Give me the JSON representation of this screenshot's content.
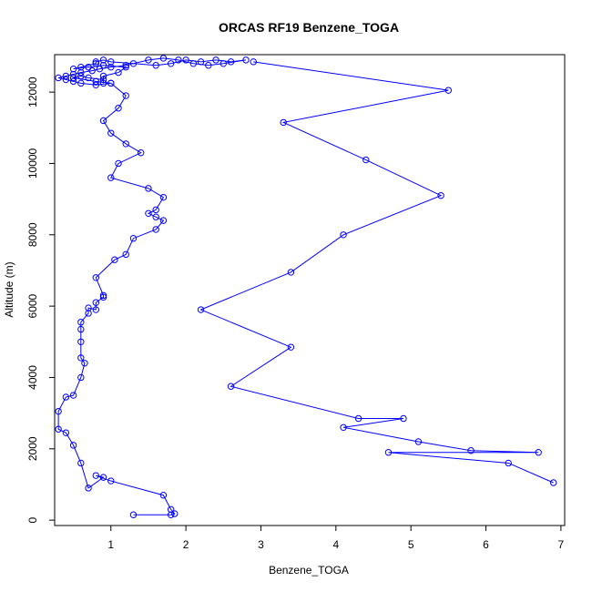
{
  "chart_data": {
    "type": "line",
    "title": "ORCAS RF19 Benzene_TOGA",
    "xlabel": "Benzene_TOGA",
    "ylabel": "Altitude (m)",
    "xlim": [
      0.25,
      7.05
    ],
    "ylim": [
      -150,
      13050
    ],
    "x_ticks": [
      1,
      2,
      3,
      4,
      5,
      6,
      7
    ],
    "y_ticks": [
      0,
      2000,
      4000,
      6000,
      8000,
      10000,
      12000
    ],
    "x_tick_labels": [
      "1",
      "2",
      "3",
      "4",
      "5",
      "6",
      "7"
    ],
    "y_tick_labels": [
      "0",
      "2000",
      "4000",
      "6000",
      "8000",
      "10000",
      "12000"
    ],
    "grid": false,
    "line_color": "#0000ff",
    "series": [
      {
        "x": [
          1.3,
          1.8,
          1.85,
          1.8,
          1.7,
          1.0,
          0.8,
          0.9,
          0.7,
          0.6,
          0.5,
          0.4,
          0.3,
          0.3,
          0.4,
          0.5,
          0.6,
          0.65,
          0.6,
          0.6,
          0.6,
          0.6,
          0.7,
          0.7,
          0.8,
          0.8,
          0.9,
          0.9,
          0.8,
          1.05,
          1.2,
          1.3,
          1.6,
          1.7,
          1.6,
          1.5,
          1.6,
          1.7,
          1.5,
          1.0,
          1.1,
          1.4,
          1.2,
          1.0,
          0.9,
          1.1,
          1.2,
          1.0,
          0.8,
          0.5,
          0.6,
          0.7,
          0.9,
          0.9,
          0.9,
          1.1,
          1.2,
          0.9,
          0.7,
          0.5,
          0.6,
          0.8,
          0.8,
          0.9,
          1.0,
          1.3,
          1.6,
          1.8,
          2.0,
          2.2,
          2.4,
          2.6,
          2.8,
          2.5,
          2.3,
          2.1,
          1.9,
          1.7,
          1.5,
          1.2,
          1.0,
          0.85,
          0.75,
          0.6,
          0.5,
          0.4,
          0.3,
          0.4,
          0.5,
          0.6,
          0.8,
          1.0
        ],
        "y": [
          150,
          150,
          180,
          300,
          700,
          1100,
          1250,
          1200,
          900,
          1600,
          2100,
          2450,
          2550,
          3050,
          3450,
          3500,
          4000,
          4400,
          4550,
          5000,
          5350,
          5550,
          5800,
          5950,
          5900,
          6100,
          6250,
          6300,
          6800,
          7300,
          7450,
          7900,
          8150,
          8400,
          8500,
          8600,
          8700,
          9050,
          9300,
          9600,
          10000,
          10300,
          10550,
          10850,
          11200,
          11550,
          11900,
          12250,
          12300,
          12400,
          12450,
          12400,
          12350,
          12250,
          12450,
          12550,
          12700,
          12750,
          12700,
          12650,
          12700,
          12800,
          12850,
          12900,
          12850,
          12800,
          12750,
          12800,
          12900,
          12850,
          12900,
          12850,
          12900,
          12800,
          12750,
          12800,
          12900,
          12950,
          12900,
          12750,
          12700,
          12650,
          12600,
          12550,
          12500,
          12450,
          12400,
          12350,
          12300,
          12250,
          12200,
          12250
        ]
      },
      {
        "x": [
          6.9,
          6.3,
          4.7,
          6.7,
          5.8,
          5.1,
          4.1,
          4.9,
          4.3,
          2.6,
          3.4,
          2.2,
          3.4,
          4.1,
          5.4,
          4.4,
          3.3,
          5.5,
          2.9
        ],
        "y": [
          1050,
          1600,
          1900,
          1900,
          1950,
          2200,
          2600,
          2850,
          2850,
          3750,
          4850,
          5900,
          6950,
          8000,
          9100,
          10100,
          11150,
          12050,
          12850
        ]
      }
    ]
  }
}
